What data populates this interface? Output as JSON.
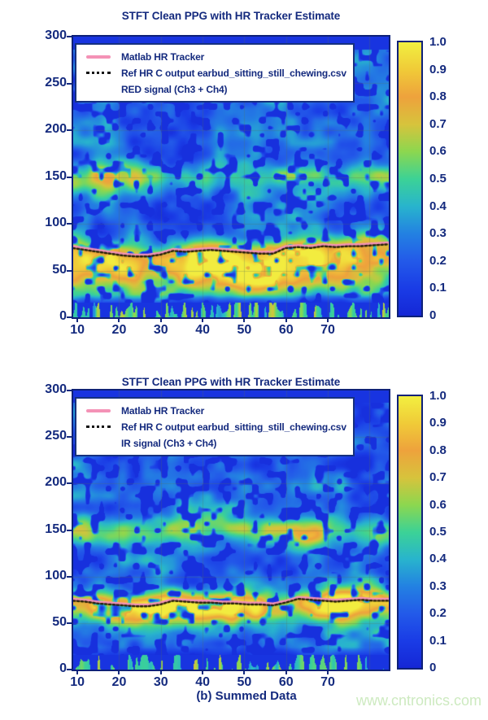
{
  "page": {
    "background": "#ffffff",
    "caption": "(b) Summed Data",
    "watermark": "www.cntronics.com"
  },
  "colors": {
    "text_navy": "#142a7e",
    "plot_border": "#0e2178",
    "legend_border": "#15307f",
    "legend_bg": "#ffffff",
    "pink_line": "#f492b6",
    "ref_line": "#241d08",
    "grid_line": "rgba(90,115,85,0.28)",
    "watermark_green": "#cdeac0"
  },
  "colormap_stops": [
    {
      "t": 0.0,
      "c": "#1527d6"
    },
    {
      "t": 0.1,
      "c": "#1a3ce6"
    },
    {
      "t": 0.2,
      "c": "#235ae9"
    },
    {
      "t": 0.3,
      "c": "#2381e2"
    },
    {
      "t": 0.4,
      "c": "#28b4cd"
    },
    {
      "t": 0.5,
      "c": "#3cd296"
    },
    {
      "t": 0.6,
      "c": "#8cd74f"
    },
    {
      "t": 0.7,
      "c": "#d7c33c"
    },
    {
      "t": 0.8,
      "c": "#eea23c"
    },
    {
      "t": 0.9,
      "c": "#f0cb38"
    },
    {
      "t": 1.0,
      "c": "#f2ef40"
    }
  ],
  "chart_data": [
    {
      "type": "heatmap",
      "title": "STFT Clean PPG with HR Tracker Estimate",
      "xlabel": "",
      "ylabel": "",
      "xlim": [
        9,
        84.6
      ],
      "ylim": [
        0,
        300
      ],
      "zlim": [
        0,
        1
      ],
      "xticks": [
        10,
        20,
        30,
        40,
        50,
        60,
        70
      ],
      "yticks": [
        0,
        50,
        100,
        150,
        200,
        250,
        300
      ],
      "colorbar_ticks": [
        "1.0",
        "0.9",
        "0.8",
        "0.7",
        "0.6",
        "0.5",
        "0.4",
        "0.3",
        "0.2",
        "0.1",
        "0"
      ],
      "grid": true,
      "legend_position": "top-left",
      "legend": [
        {
          "marker": "pink-line",
          "label": "Matlab HR Tracker"
        },
        {
          "marker": "black-dotted",
          "label": "Ref HR C output earbud_sitting_still_chewing.csv"
        },
        {
          "marker": "none",
          "label": "RED signal (Ch3 + Ch4)"
        }
      ],
      "tracker_hr_bpm": {
        "x": [
          9,
          12,
          15,
          18,
          21,
          24,
          27,
          30,
          33,
          36,
          39,
          42,
          45,
          48,
          51,
          54,
          57,
          60,
          63,
          66,
          69,
          72,
          75,
          78,
          81,
          84.6
        ],
        "bpm": [
          74,
          72,
          70,
          68,
          66,
          65,
          65,
          67,
          71,
          70,
          71,
          72,
          71,
          70,
          69,
          68,
          68,
          74,
          75,
          74,
          76,
          75,
          76,
          76,
          77,
          78
        ]
      },
      "texture": {
        "seed": 11,
        "band_center_offset": -6,
        "band_sigma_above": 12,
        "band_sigma_below": 21,
        "band_amp": 0.88,
        "sub_band_center": 40,
        "sub_band_amp": 0.3,
        "harmonic_center": 149,
        "harmonic_amp": 0.5
      }
    },
    {
      "type": "heatmap",
      "title": "STFT Clean PPG with HR Tracker Estimate",
      "xlabel": "",
      "ylabel": "",
      "xlim": [
        9,
        84.6
      ],
      "ylim": [
        0,
        300
      ],
      "zlim": [
        0,
        1
      ],
      "xticks": [
        10,
        20,
        30,
        40,
        50,
        60,
        70
      ],
      "yticks": [
        0,
        50,
        100,
        150,
        200,
        250,
        300
      ],
      "colorbar_ticks": [
        "1.0",
        "0.9",
        "0.8",
        "0.7",
        "0.6",
        "0.5",
        "0.4",
        "0.3",
        "0.2",
        "0.1",
        "0"
      ],
      "grid": true,
      "legend_position": "top-left",
      "legend": [
        {
          "marker": "pink-line",
          "label": "Matlab HR Tracker"
        },
        {
          "marker": "black-dotted",
          "label": "Ref HR C output earbud_sitting_still_chewing.csv"
        },
        {
          "marker": "none",
          "label": "IR signal (Ch3 + Ch4)"
        }
      ],
      "tracker_hr_bpm": {
        "x": [
          9,
          12,
          15,
          18,
          21,
          24,
          27,
          30,
          33,
          36,
          39,
          42,
          45,
          48,
          51,
          54,
          57,
          60,
          63,
          66,
          69,
          72,
          75,
          78,
          81,
          84.6
        ],
        "bpm": [
          74,
          73,
          71,
          70,
          69,
          68,
          68,
          70,
          74,
          73,
          72,
          72,
          71,
          71,
          70,
          70,
          69,
          72,
          76,
          75,
          74,
          73,
          74,
          75,
          74,
          74
        ]
      },
      "texture": {
        "seed": 29,
        "band_center_offset": -2,
        "band_sigma_above": 10,
        "band_sigma_below": 13,
        "band_amp": 0.92,
        "sub_band_center": 45,
        "sub_band_amp": 0.12,
        "harmonic_center": 150,
        "harmonic_amp": 0.55
      }
    }
  ]
}
